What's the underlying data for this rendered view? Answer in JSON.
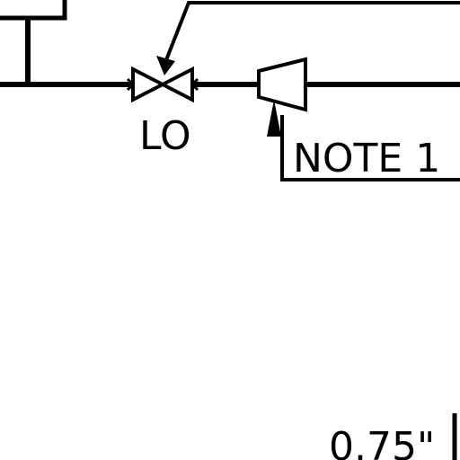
{
  "labels": {
    "valve_tag": "LO",
    "note_callout": "NOTE 1",
    "dimension": "0.75\""
  },
  "colors": {
    "line": "#000000",
    "background": "#ffffff"
  }
}
